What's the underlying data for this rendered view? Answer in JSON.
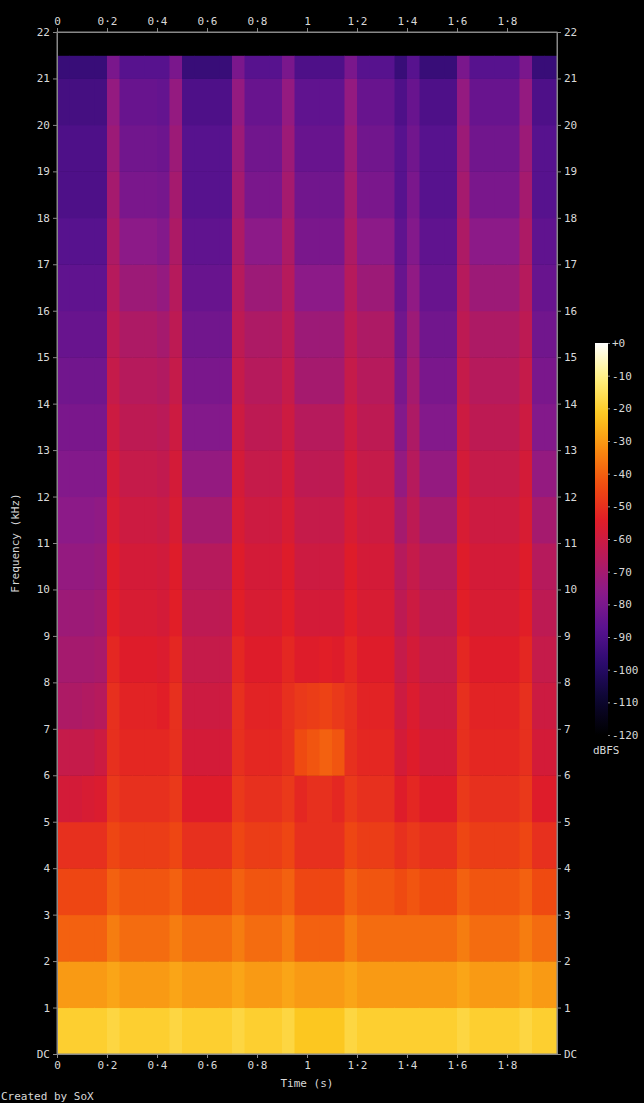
{
  "chart_data": {
    "type": "heatmap",
    "xlabel": "Time (s)",
    "ylabel": "Frequency (kHz)",
    "annotation": "Created by SoX",
    "xlim": [
      0,
      2
    ],
    "ylim": [
      0,
      22
    ],
    "xticks": [
      0,
      {
        "value": 0.2,
        "label": "0·2"
      },
      {
        "value": 0.4,
        "label": "0·4"
      },
      {
        "value": 0.6,
        "label": "0·6"
      },
      {
        "value": 0.8,
        "label": "0·8"
      },
      1,
      {
        "value": 1.2,
        "label": "1·2"
      },
      {
        "value": 1.4,
        "label": "1·4"
      },
      {
        "value": 1.6,
        "label": "1·6"
      },
      {
        "value": 1.8,
        "label": "1·8"
      }
    ],
    "yticks": [
      {
        "value": 0,
        "label": "DC"
      },
      1,
      2,
      3,
      4,
      5,
      6,
      7,
      8,
      9,
      10,
      11,
      12,
      13,
      14,
      15,
      16,
      17,
      18,
      19,
      20,
      21,
      22
    ],
    "x_bins": [
      0,
      0.05,
      0.1,
      0.15,
      0.2,
      0.25,
      0.3,
      0.35,
      0.4,
      0.45,
      0.5,
      0.55,
      0.6,
      0.65,
      0.7,
      0.75,
      0.8,
      0.85,
      0.9,
      0.95,
      1,
      1.05,
      1.1,
      1.15,
      1.2,
      1.25,
      1.3,
      1.35,
      1.4,
      1.45,
      1.5,
      1.55,
      1.6,
      1.65,
      1.7,
      1.75,
      1.8,
      1.85,
      1.9,
      1.95,
      2
    ],
    "y_bins": [
      0,
      1,
      2,
      3,
      4,
      5,
      6,
      7,
      8,
      9,
      10,
      11,
      12,
      13,
      14,
      15,
      16,
      17,
      18,
      19,
      20,
      21,
      21.5,
      22
    ],
    "z": [
      [
        -20,
        -30,
        -40,
        -45,
        -50,
        -58,
        -62,
        -68,
        -70,
        -72,
        -74,
        -76,
        -78,
        -80,
        -82,
        -84,
        -86,
        -88,
        -90,
        -90,
        -92,
        -95,
        -120
      ],
      [
        -20,
        -30,
        -40,
        -45,
        -50,
        -58,
        -62,
        -68,
        -70,
        -72,
        -74,
        -76,
        -78,
        -80,
        -82,
        -84,
        -86,
        -88,
        -90,
        -90,
        -92,
        -95,
        -120
      ],
      [
        -20,
        -30,
        -40,
        -45,
        -50,
        -57,
        -62,
        -67,
        -70,
        -72,
        -74,
        -76,
        -78,
        -80,
        -82,
        -84,
        -86,
        -88,
        -90,
        -90,
        -92,
        -95,
        -120
      ],
      [
        -20,
        -30,
        -40,
        -45,
        -50,
        -56,
        -60,
        -66,
        -69,
        -71,
        -73,
        -75,
        -78,
        -80,
        -82,
        -84,
        -86,
        -88,
        -90,
        -90,
        -92,
        -95,
        -120
      ],
      [
        -18,
        -28,
        -35,
        -40,
        -45,
        -48,
        -50,
        -50,
        -52,
        -54,
        -55,
        -57,
        -58,
        -60,
        -62,
        -64,
        -66,
        -68,
        -70,
        -72,
        -74,
        -80,
        -120
      ],
      [
        -20,
        -30,
        -38,
        -42,
        -47,
        -50,
        -52,
        -53,
        -55,
        -57,
        -58,
        -60,
        -62,
        -64,
        -66,
        -68,
        -72,
        -76,
        -80,
        -82,
        -84,
        -88,
        -120
      ],
      [
        -20,
        -30,
        -38,
        -42,
        -47,
        -50,
        -52,
        -53,
        -55,
        -57,
        -58,
        -60,
        -62,
        -64,
        -66,
        -68,
        -72,
        -76,
        -80,
        -82,
        -84,
        -88,
        -120
      ],
      [
        -20,
        -30,
        -38,
        -42,
        -47,
        -50,
        -52,
        -53,
        -55,
        -57,
        -58,
        -60,
        -62,
        -64,
        -66,
        -68,
        -72,
        -76,
        -80,
        -82,
        -84,
        -88,
        -120
      ],
      [
        -20,
        -30,
        -38,
        -42,
        -47,
        -50,
        -52,
        -54,
        -56,
        -58,
        -59,
        -61,
        -63,
        -65,
        -67,
        -70,
        -74,
        -78,
        -81,
        -83,
        -85,
        -88,
        -120
      ],
      [
        -18,
        -28,
        -35,
        -40,
        -45,
        -48,
        -50,
        -50,
        -52,
        -54,
        -55,
        -57,
        -58,
        -60,
        -62,
        -64,
        -66,
        -68,
        -70,
        -72,
        -74,
        -80,
        -120
      ],
      [
        -20,
        -30,
        -38,
        -44,
        -50,
        -55,
        -58,
        -60,
        -62,
        -64,
        -66,
        -70,
        -74,
        -78,
        -80,
        -82,
        -84,
        -86,
        -88,
        -88,
        -90,
        -95,
        -120
      ],
      [
        -20,
        -30,
        -38,
        -44,
        -50,
        -55,
        -58,
        -60,
        -62,
        -64,
        -66,
        -70,
        -74,
        -78,
        -80,
        -82,
        -84,
        -86,
        -88,
        -88,
        -90,
        -95,
        -120
      ],
      [
        -20,
        -30,
        -38,
        -44,
        -50,
        -55,
        -58,
        -60,
        -62,
        -64,
        -66,
        -70,
        -74,
        -78,
        -80,
        -82,
        -84,
        -86,
        -88,
        -88,
        -90,
        -95,
        -120
      ],
      [
        -20,
        -30,
        -38,
        -44,
        -50,
        -55,
        -58,
        -60,
        -62,
        -64,
        -66,
        -70,
        -74,
        -78,
        -80,
        -82,
        -84,
        -86,
        -88,
        -88,
        -90,
        -95,
        -120
      ],
      [
        -18,
        -28,
        -35,
        -40,
        -45,
        -48,
        -50,
        -50,
        -52,
        -54,
        -55,
        -57,
        -58,
        -60,
        -62,
        -64,
        -66,
        -68,
        -70,
        -72,
        -74,
        -80,
        -120
      ],
      [
        -20,
        -30,
        -38,
        -42,
        -47,
        -50,
        -52,
        -53,
        -55,
        -57,
        -58,
        -60,
        -62,
        -64,
        -66,
        -68,
        -72,
        -76,
        -80,
        -82,
        -84,
        -88,
        -120
      ],
      [
        -20,
        -30,
        -38,
        -42,
        -47,
        -50,
        -52,
        -53,
        -55,
        -57,
        -58,
        -60,
        -62,
        -64,
        -66,
        -68,
        -72,
        -76,
        -80,
        -82,
        -84,
        -88,
        -120
      ],
      [
        -20,
        -30,
        -38,
        -42,
        -47,
        -50,
        -52,
        -53,
        -55,
        -57,
        -58,
        -60,
        -62,
        -64,
        -66,
        -68,
        -72,
        -76,
        -80,
        -82,
        -84,
        -88,
        -120
      ],
      [
        -18,
        -28,
        -35,
        -40,
        -45,
        -48,
        -50,
        -50,
        -52,
        -54,
        -55,
        -57,
        -58,
        -60,
        -62,
        -64,
        -66,
        -68,
        -70,
        -72,
        -74,
        -80,
        -120
      ],
      [
        -22,
        -30,
        -40,
        -45,
        -50,
        -52,
        -44,
        -48,
        -55,
        -58,
        -60,
        -62,
        -64,
        -66,
        -70,
        -72,
        -76,
        -80,
        -82,
        -84,
        -86,
        -90,
        -120
      ],
      [
        -22,
        -30,
        -40,
        -45,
        -50,
        -50,
        -42,
        -47,
        -55,
        -58,
        -60,
        -62,
        -64,
        -66,
        -70,
        -72,
        -76,
        -80,
        -82,
        -84,
        -86,
        -90,
        -120
      ],
      [
        -22,
        -30,
        -40,
        -45,
        -50,
        -50,
        -40,
        -46,
        -54,
        -58,
        -60,
        -62,
        -64,
        -66,
        -70,
        -72,
        -76,
        -80,
        -82,
        -84,
        -86,
        -90,
        -120
      ],
      [
        -22,
        -30,
        -40,
        -45,
        -50,
        -52,
        -42,
        -48,
        -55,
        -58,
        -60,
        -62,
        -64,
        -66,
        -70,
        -72,
        -76,
        -80,
        -82,
        -84,
        -86,
        -90,
        -120
      ],
      [
        -18,
        -28,
        -35,
        -40,
        -45,
        -48,
        -50,
        -50,
        -52,
        -54,
        -55,
        -57,
        -58,
        -60,
        -62,
        -64,
        -66,
        -68,
        -70,
        -72,
        -74,
        -80,
        -120
      ],
      [
        -20,
        -30,
        -38,
        -42,
        -47,
        -50,
        -52,
        -53,
        -55,
        -57,
        -58,
        -60,
        -62,
        -64,
        -66,
        -68,
        -72,
        -76,
        -80,
        -82,
        -84,
        -88,
        -120
      ],
      [
        -20,
        -30,
        -38,
        -42,
        -47,
        -50,
        -52,
        -53,
        -55,
        -57,
        -58,
        -60,
        -62,
        -64,
        -66,
        -68,
        -72,
        -76,
        -80,
        -82,
        -84,
        -88,
        -120
      ],
      [
        -20,
        -30,
        -38,
        -42,
        -47,
        -50,
        -52,
        -53,
        -55,
        -57,
        -58,
        -60,
        -62,
        -64,
        -66,
        -68,
        -72,
        -76,
        -80,
        -82,
        -84,
        -88,
        -120
      ],
      [
        -20,
        -30,
        -38,
        -44,
        -50,
        -55,
        -58,
        -60,
        -62,
        -64,
        -66,
        -70,
        -74,
        -78,
        -80,
        -82,
        -84,
        -86,
        -88,
        -88,
        -90,
        -95,
        -120
      ],
      [
        -20,
        -30,
        -38,
        -42,
        -48,
        -52,
        -55,
        -56,
        -58,
        -60,
        -62,
        -64,
        -66,
        -68,
        -70,
        -72,
        -75,
        -78,
        -80,
        -82,
        -84,
        -88,
        -120
      ],
      [
        -20,
        -30,
        -38,
        -44,
        -50,
        -55,
        -58,
        -60,
        -62,
        -64,
        -66,
        -70,
        -74,
        -78,
        -80,
        -82,
        -84,
        -86,
        -88,
        -88,
        -90,
        -95,
        -120
      ],
      [
        -20,
        -30,
        -38,
        -44,
        -50,
        -55,
        -58,
        -60,
        -62,
        -64,
        -66,
        -70,
        -74,
        -78,
        -80,
        -82,
        -84,
        -86,
        -88,
        -88,
        -90,
        -95,
        -120
      ],
      [
        -20,
        -30,
        -38,
        -44,
        -50,
        -55,
        -58,
        -60,
        -62,
        -64,
        -66,
        -70,
        -74,
        -78,
        -80,
        -82,
        -84,
        -86,
        -88,
        -88,
        -90,
        -95,
        -120
      ],
      [
        -18,
        -28,
        -35,
        -40,
        -45,
        -48,
        -50,
        -50,
        -52,
        -54,
        -55,
        -57,
        -58,
        -60,
        -62,
        -64,
        -66,
        -68,
        -70,
        -72,
        -74,
        -80,
        -120
      ],
      [
        -20,
        -30,
        -38,
        -42,
        -47,
        -50,
        -52,
        -53,
        -55,
        -57,
        -58,
        -60,
        -62,
        -64,
        -66,
        -68,
        -72,
        -76,
        -80,
        -82,
        -84,
        -88,
        -120
      ],
      [
        -20,
        -30,
        -38,
        -42,
        -47,
        -50,
        -52,
        -53,
        -55,
        -57,
        -58,
        -60,
        -62,
        -64,
        -66,
        -68,
        -72,
        -76,
        -80,
        -82,
        -84,
        -88,
        -120
      ],
      [
        -20,
        -30,
        -38,
        -42,
        -47,
        -50,
        -52,
        -53,
        -55,
        -57,
        -58,
        -60,
        -62,
        -64,
        -66,
        -68,
        -72,
        -76,
        -80,
        -82,
        -84,
        -88,
        -120
      ],
      [
        -20,
        -30,
        -38,
        -42,
        -47,
        -50,
        -52,
        -53,
        -55,
        -57,
        -58,
        -60,
        -62,
        -64,
        -66,
        -68,
        -72,
        -76,
        -80,
        -82,
        -84,
        -88,
        -120
      ],
      [
        -18,
        -28,
        -35,
        -40,
        -45,
        -48,
        -50,
        -50,
        -52,
        -54,
        -55,
        -57,
        -58,
        -60,
        -62,
        -64,
        -66,
        -68,
        -70,
        -72,
        -74,
        -80,
        -120
      ],
      [
        -20,
        -30,
        -38,
        -44,
        -50,
        -55,
        -58,
        -60,
        -62,
        -64,
        -66,
        -70,
        -74,
        -78,
        -80,
        -82,
        -84,
        -86,
        -88,
        -88,
        -90,
        -95,
        -120
      ],
      [
        -20,
        -30,
        -38,
        -44,
        -50,
        -55,
        -58,
        -60,
        -62,
        -64,
        -66,
        -70,
        -74,
        -78,
        -80,
        -82,
        -84,
        -86,
        -88,
        -88,
        -90,
        -95,
        -120
      ]
    ],
    "colorbar": {
      "range": [
        -120,
        0
      ],
      "ticks": [
        {
          "value": 0,
          "label": "+0"
        },
        -10,
        -20,
        -30,
        -40,
        -50,
        -60,
        -70,
        -80,
        -90,
        -100,
        -110,
        -120
      ],
      "label": "dBFS"
    }
  }
}
